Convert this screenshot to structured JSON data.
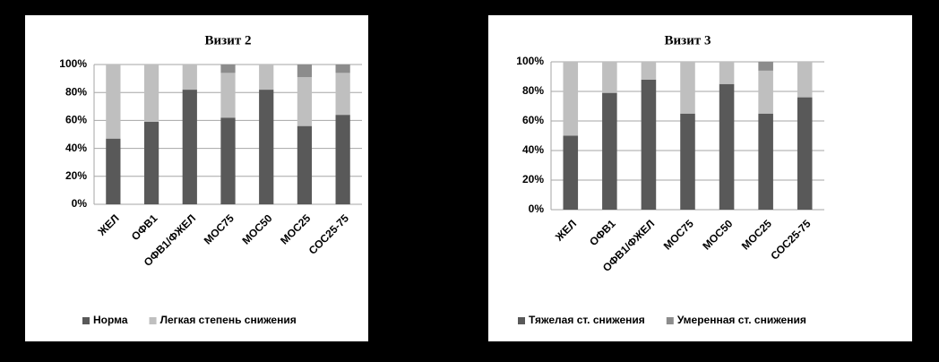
{
  "chart_data": [
    {
      "type": "stacked_bar",
      "title": "Визит 2",
      "categories": [
        "ЖЕЛ",
        "ОФВ1",
        "ОФВ1/ФЖЕЛ",
        "МОС75",
        "МОС50",
        "МОС25",
        "СОС25-75"
      ],
      "series": [
        {
          "name": "Норма",
          "color": "#595959",
          "values": [
            47,
            59,
            82,
            62,
            82,
            56,
            64
          ]
        },
        {
          "name": "Легкая степень снижения",
          "color": "#bfbfbf",
          "values": [
            53,
            41,
            18,
            32,
            18,
            35,
            30
          ]
        },
        {
          "name": null,
          "color": "#8c8c8c",
          "values": [
            0,
            0,
            0,
            6,
            0,
            9,
            6
          ]
        }
      ],
      "ylim": [
        0,
        100
      ],
      "yticks": [
        {
          "value": 0,
          "label": "0%"
        },
        {
          "value": 20,
          "label": "20%"
        },
        {
          "value": 40,
          "label": "40%"
        },
        {
          "value": 60,
          "label": "60%"
        },
        {
          "value": 80,
          "label": "80%"
        },
        {
          "value": 100,
          "label": "100%"
        }
      ],
      "grid": true,
      "legend": "bottom"
    },
    {
      "type": "stacked_bar",
      "title": "Визит 3",
      "categories": [
        "ЖЕЛ",
        "ОФВ1",
        "ОФВ1/ФЖЕЛ",
        "МОС75",
        "МОС50",
        "МОС25",
        "СОС25-75"
      ],
      "series": [
        {
          "name": "Тяжелая ст. снижения",
          "color": "#595959",
          "values": [
            50,
            79,
            88,
            65,
            85,
            65,
            76
          ]
        },
        {
          "name": null,
          "color": "#bfbfbf",
          "values": [
            50,
            21,
            12,
            35,
            15,
            29,
            24
          ]
        },
        {
          "name": "Умеренная ст. снижения",
          "color": "#8c8c8c",
          "values": [
            0,
            0,
            0,
            0,
            0,
            6,
            0
          ]
        }
      ],
      "ylim": [
        0,
        100
      ],
      "yticks": [
        {
          "value": 0,
          "label": "0%"
        },
        {
          "value": 20,
          "label": "20%"
        },
        {
          "value": 40,
          "label": "40%"
        },
        {
          "value": 60,
          "label": "60%"
        },
        {
          "value": 80,
          "label": "80%"
        },
        {
          "value": 100,
          "label": "100%"
        }
      ],
      "grid": true,
      "legend": "bottom"
    }
  ]
}
